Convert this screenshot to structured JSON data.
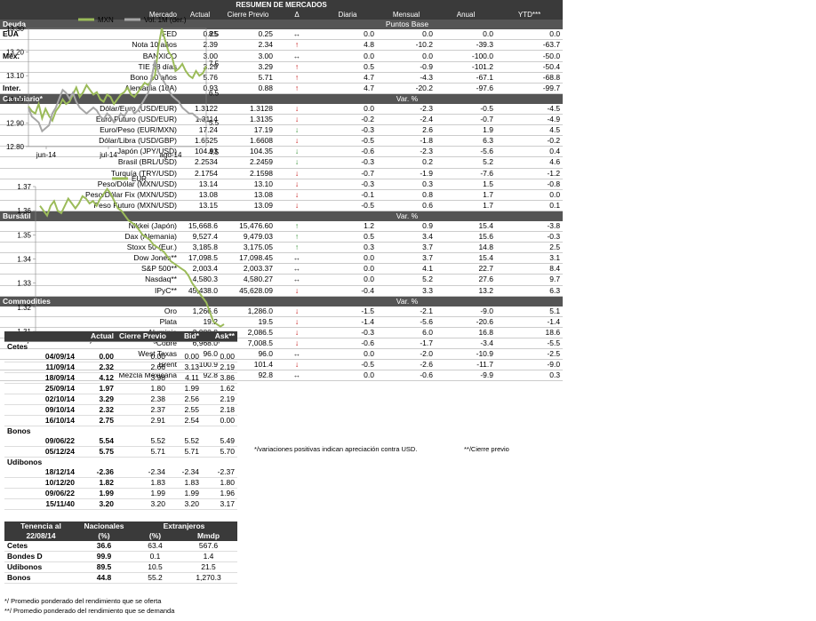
{
  "chart_mxn": {
    "type": "line",
    "legend": [
      "MXN",
      "Vol. 1M (der.)"
    ],
    "y_left_ticks": [
      "13.30",
      "13.20",
      "13.10",
      "13.00",
      "12.90",
      "12.80"
    ],
    "y_right_ticks": [
      "8.5",
      "7.5",
      "6.5",
      "5.5",
      "4.5"
    ],
    "x_ticks": [
      "jun-14",
      "jul-14",
      "ago-14"
    ],
    "series": [
      {
        "name": "MXN",
        "color": "#9bbb59",
        "values": [
          12.97,
          12.95,
          12.94,
          12.98,
          12.92,
          12.96,
          12.93,
          12.91,
          12.95,
          12.97,
          13.0,
          12.98,
          12.99,
          13.02,
          13.05,
          13.01,
          13.03,
          13.06,
          13.04,
          13.02,
          13.03,
          13.0,
          12.99,
          13.02,
          13.01,
          12.98,
          13.0,
          13.02,
          13.03,
          13.05,
          13.02,
          13.01,
          13.03,
          13.05,
          13.07,
          13.06,
          13.08,
          13.1,
          13.22,
          13.3,
          13.25,
          13.2,
          13.18,
          13.12,
          13.13,
          13.15,
          13.12,
          13.1,
          13.09,
          13.12,
          13.1,
          13.11,
          13.14
        ]
      },
      {
        "name": "Vol. 1M (der.)",
        "color": "#a6a6a6",
        "values": [
          6.0,
          5.7,
          5.6,
          5.5,
          5.2,
          5.3,
          5.4,
          5.8,
          6.0,
          6.3,
          6.6,
          6.5,
          6.3,
          6.5,
          6.2,
          6.0,
          5.9,
          5.8,
          5.9,
          6.0,
          5.9,
          5.7,
          5.6,
          5.8,
          5.7,
          5.5,
          5.6,
          5.8,
          5.7,
          5.9,
          6.0,
          5.8,
          5.9,
          6.1,
          6.3,
          6.5,
          7.0,
          7.6,
          7.2,
          7.0,
          6.8,
          6.6,
          6.4,
          6.3,
          6.2,
          6.0,
          5.9,
          5.8,
          5.8,
          5.7,
          5.6,
          5.6,
          5.5
        ]
      }
    ]
  },
  "chart_eur": {
    "type": "line",
    "legend": [
      "EUR"
    ],
    "y_ticks": [
      "1.37",
      "1.36",
      "1.35",
      "1.34",
      "1.33",
      "1.32",
      "1.31"
    ],
    "x_ticks": [
      "jun-14",
      "jul-14",
      "ago-14",
      "sep-14"
    ],
    "series": [
      {
        "name": "EUR",
        "color": "#9bbb59",
        "values": [
          1.362,
          1.36,
          1.358,
          1.362,
          1.364,
          1.36,
          1.359,
          1.362,
          1.365,
          1.363,
          1.361,
          1.363,
          1.366,
          1.365,
          1.363,
          1.364,
          1.362,
          1.365,
          1.367,
          1.369,
          1.367,
          1.364,
          1.361,
          1.36,
          1.358,
          1.356,
          1.355,
          1.354,
          1.352,
          1.35,
          1.349,
          1.348,
          1.346,
          1.345,
          1.344,
          1.343,
          1.341,
          1.339,
          1.338,
          1.337,
          1.336,
          1.335,
          1.333,
          1.33,
          1.328,
          1.326,
          1.324,
          1.322,
          1.318,
          1.314,
          1.313,
          1.312,
          1.313
        ]
      }
    ]
  },
  "cetes": {
    "headers": [
      "Actual",
      "Cierre Previo",
      "Bid*",
      "Ask**"
    ],
    "sections": [
      {
        "title": "Cetes",
        "rows": [
          [
            "04/09/14",
            "0.00",
            "0.00",
            "0.00",
            "0.00"
          ],
          [
            "11/09/14",
            "2.32",
            "2.66",
            "3.13",
            "2.19"
          ],
          [
            "18/09/14",
            "4.12",
            "3.98",
            "4.11",
            "3.86"
          ],
          [
            "25/09/14",
            "1.97",
            "1.80",
            "1.99",
            "1.62"
          ],
          [
            "02/10/14",
            "3.29",
            "2.38",
            "2.56",
            "2.19"
          ],
          [
            "09/10/14",
            "2.32",
            "2.37",
            "2.55",
            "2.18"
          ],
          [
            "16/10/14",
            "2.75",
            "2.91",
            "2.54",
            "0.00"
          ]
        ]
      },
      {
        "title": "Bonos",
        "rows": [
          [
            "09/06/22",
            "5.54",
            "5.52",
            "5.52",
            "5.49"
          ],
          [
            "05/12/24",
            "5.75",
            "5.71",
            "5.71",
            "5.70"
          ]
        ]
      },
      {
        "title": "Udibonos",
        "rows": [
          [
            "18/12/14",
            "-2.36",
            "-2.34",
            "-2.34",
            "-2.37"
          ],
          [
            "10/12/20",
            "1.82",
            "1.83",
            "1.83",
            "1.80"
          ],
          [
            "09/06/22",
            "1.99",
            "1.99",
            "1.99",
            "1.96"
          ],
          [
            "15/11/40",
            "3.20",
            "3.20",
            "3.20",
            "3.17"
          ]
        ]
      }
    ]
  },
  "tenencia": {
    "h1": [
      "Tenencia al",
      "Nacionales",
      "Extranjeros"
    ],
    "h2": [
      "22/08/14",
      "(%)",
      "(%)",
      "Mmdp"
    ],
    "rows": [
      [
        "Cetes",
        "36.6",
        "63.4",
        "567.6"
      ],
      [
        "Bondes D",
        "99.9",
        "0.1",
        "1.4"
      ],
      [
        "Udibonos",
        "89.5",
        "10.5",
        "21.5"
      ],
      [
        "Bonos",
        "44.8",
        "55.2",
        "1,270.3"
      ]
    ],
    "notes": [
      "*/ Promedio ponderado del rendimiento que se oferta",
      "**/ Promedio ponderado del rendimiento que se demanda"
    ]
  },
  "summary": {
    "title": "RESUMEN DE MERCADOS",
    "headers": [
      "Mercado",
      "Actual",
      "Cierre Previo",
      "Δ",
      "Diaria",
      "Mensual",
      "Anual",
      "YTD***"
    ],
    "sections": [
      {
        "title": "Deuda",
        "unit": "Puntos Base",
        "rows": [
          [
            "EUA",
            "FED",
            "0.25",
            "0.25",
            "eq",
            "0.0",
            "0.0",
            "0.0",
            "0.0"
          ],
          [
            "",
            "Nota 10 años",
            "2.39",
            "2.34",
            "up",
            "4.8",
            "-10.2",
            "-39.3",
            "-63.7"
          ],
          [
            "Méx.",
            "BANXICO",
            "3.00",
            "3.00",
            "eq",
            "0.0",
            "0.0",
            "-100.0",
            "-50.0"
          ],
          [
            "",
            "TIE 28 días",
            "3.29",
            "3.29",
            "up",
            "0.5",
            "-0.9",
            "-101.2",
            "-50.4"
          ],
          [
            "",
            "Bono 10 años",
            "5.76",
            "5.71",
            "up",
            "4.7",
            "-4.3",
            "-67.1",
            "-68.8"
          ],
          [
            "Inter.",
            "Alemania (10A)",
            "0.93",
            "0.88",
            "up",
            "4.7",
            "-20.2",
            "-97.6",
            "-99.7"
          ]
        ]
      },
      {
        "title": "Cambiario*",
        "unit": "Var. %",
        "rows": [
          [
            "",
            "Dólar/Euro (USD/EUR)",
            "1.3122",
            "1.3128",
            "dn",
            "0.0",
            "-2.3",
            "-0.5",
            "-4.5"
          ],
          [
            "",
            "Euro Futuro (USD/EUR)",
            "1.3114",
            "1.3135",
            "dn",
            "-0.2",
            "-2.4",
            "-0.7",
            "-4.9"
          ],
          [
            "",
            "Euro/Peso  (EUR/MXN)",
            "17.24",
            "17.19",
            "gdn",
            "-0.3",
            "2.6",
            "1.9",
            "4.5"
          ],
          [
            "",
            "Dólar/Libra (USD/GBP)",
            "1.6525",
            "1.6608",
            "dn",
            "-0.5",
            "-1.8",
            "6.3",
            "-0.2"
          ],
          [
            "",
            "Japón  (JPY/USD)",
            "104.93",
            "104.35",
            "gdn",
            "-0.6",
            "-2.3",
            "-5.6",
            "0.4"
          ],
          [
            "",
            "Brasil (BRL/USD)",
            "2.2534",
            "2.2459",
            "gdn",
            "-0.3",
            "0.2",
            "5.2",
            "4.6"
          ],
          [
            "",
            "Turquía (TRY/USD)",
            "2.1754",
            "2.1598",
            "dn",
            "-0.7",
            "-1.9",
            "-7.6",
            "-1.2"
          ],
          [
            "",
            "Peso/Dólar (MXN/USD)",
            "13.14",
            "13.10",
            "dn",
            "-0.3",
            "0.3",
            "1.5",
            "-0.8"
          ],
          [
            "",
            "Peso/Dólar Fix (MXN/USD)",
            "13.08",
            "13.08",
            "dn",
            "-0.1",
            "0.8",
            "1.7",
            "0.0"
          ],
          [
            "",
            "Peso Futuro (MXN/USD)",
            "13.15",
            "13.09",
            "dn",
            "-0.5",
            "0.6",
            "1.7",
            "0.1"
          ]
        ]
      },
      {
        "title": "Bursátil",
        "unit": "Var. %",
        "rows": [
          [
            "",
            "Nikkei (Japón)",
            "15,668.6",
            "15,476.60",
            "gup",
            "1.2",
            "0.9",
            "15.4",
            "-3.8"
          ],
          [
            "",
            "Dax (Alemania)",
            "9,527.4",
            "9,479.03",
            "gup",
            "0.5",
            "3.4",
            "15.6",
            "-0.3"
          ],
          [
            "",
            "Stoxx 50 (Eur.)",
            "3,185.8",
            "3,175.05",
            "gup",
            "0.3",
            "3.7",
            "14.8",
            "2.5"
          ],
          [
            "",
            "Dow  Jones**",
            "17,098.5",
            "17,098.45",
            "eq",
            "0.0",
            "3.7",
            "15.4",
            "3.1"
          ],
          [
            "",
            "S&P 500**",
            "2,003.4",
            "2,003.37",
            "eq",
            "0.0",
            "4.1",
            "22.7",
            "8.4"
          ],
          [
            "",
            "Nasdaq**",
            "4,580.3",
            "4,580.27",
            "eq",
            "0.0",
            "5.2",
            "27.6",
            "9.7"
          ],
          [
            "",
            "IPyC**",
            "45,438.0",
            "45,628.09",
            "dn",
            "-0.4",
            "3.3",
            "13.2",
            "6.3"
          ]
        ]
      },
      {
        "title": "Commodities",
        "unit": "Var. %",
        "rows": [
          [
            "",
            "Oro",
            "1,266.6",
            "1,286.0",
            "dn",
            "-1.5",
            "-2.1",
            "-9.0",
            "5.1"
          ],
          [
            "",
            "Plata",
            "19.2",
            "19.5",
            "dn",
            "-1.4",
            "-5.6",
            "-20.6",
            "-1.4"
          ],
          [
            "",
            "Aluminio",
            "2,080.8",
            "2,086.5",
            "dn",
            "-0.3",
            "6.0",
            "16.8",
            "18.6"
          ],
          [
            "",
            "Cobre",
            "6,968.0",
            "7,008.5",
            "dn",
            "-0.6",
            "-1.7",
            "-3.4",
            "-5.5"
          ],
          [
            "",
            "West Texas",
            "96.0",
            "96.0",
            "eq",
            "0.0",
            "-2.0",
            "-10.9",
            "-2.5"
          ],
          [
            "",
            "Brent",
            "100.9",
            "101.4",
            "dn",
            "-0.5",
            "-2.6",
            "-11.7",
            "-9.0"
          ],
          [
            "",
            "Mezcla Mexicana",
            "92.8",
            "92.8",
            "eq",
            "0.0",
            "-0.6",
            "-9.9",
            "0.3"
          ]
        ]
      }
    ],
    "footnote1": "*/variaciones positivas indican apreciación contra USD.",
    "footnote2": "**/Cierre previo"
  }
}
